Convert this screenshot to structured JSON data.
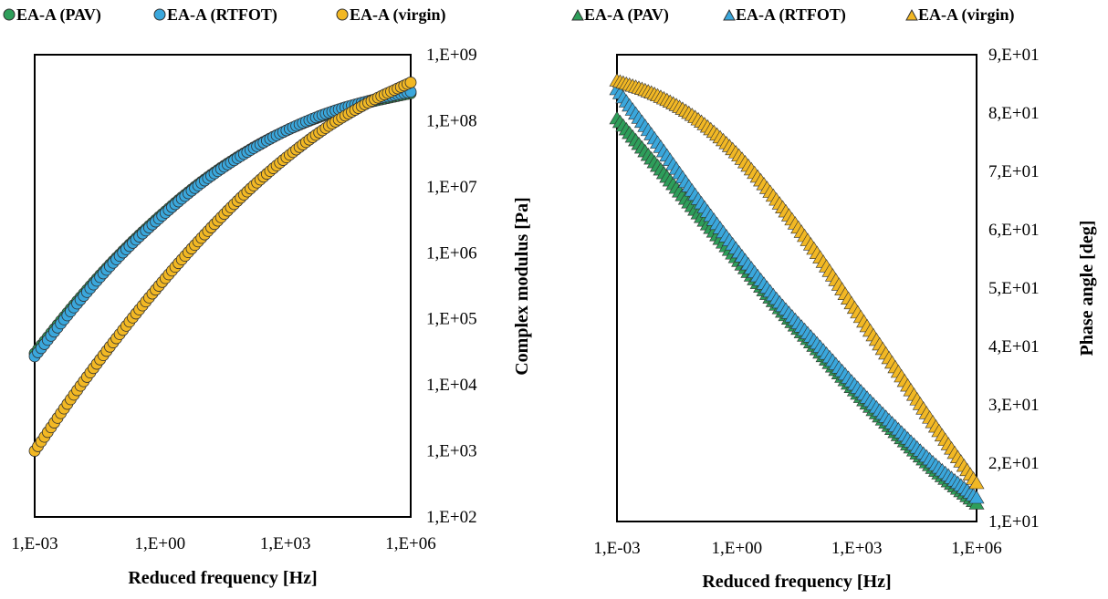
{
  "colors": {
    "pav": "#2e9e5a",
    "rtfot": "#3aa7dc",
    "virgin": "#f2b824",
    "marker_edge": "#303030"
  },
  "chart_data": [
    {
      "type": "scatter",
      "marker": "circle",
      "title": "",
      "xlabel": "Reduced frequency [Hz]",
      "ylabel": "Complex modulus [Pa]",
      "xscale": "log",
      "yscale": "log",
      "xlim": [
        0.001,
        1000000
      ],
      "ylim": [
        100,
        1000000000
      ],
      "y_axis_side": "right",
      "grid": false,
      "legend_position": "top",
      "x_tick_labels": [
        "1,E-03",
        "1,E+00",
        "1,E+03",
        "1,E+06"
      ],
      "y_tick_labels": [
        "1,E+02",
        "1,E+03",
        "1,E+04",
        "1,E+05",
        "1,E+06",
        "1,E+07",
        "1,E+08",
        "1,E+09"
      ],
      "series": [
        {
          "name": "EA-A (PAV)",
          "color": "#2e9e5a",
          "x": [
            0.001,
            0.01,
            0.1,
            1,
            10,
            100,
            1000,
            10000,
            100000,
            1000000
          ],
          "y": [
            30000,
            180000,
            900000,
            3600000,
            12000000,
            32000000,
            70000000,
            125000000,
            190000000,
            260000000
          ]
        },
        {
          "name": "EA-A (RTFOT)",
          "color": "#3aa7dc",
          "x": [
            0.001,
            0.01,
            0.1,
            1,
            10,
            100,
            1000,
            10000,
            100000,
            1000000
          ],
          "y": [
            27000,
            165000,
            850000,
            3400000,
            11500000,
            31000000,
            70000000,
            130000000,
            200000000,
            275000000
          ]
        },
        {
          "name": "EA-A (virgin)",
          "color": "#f2b824",
          "x": [
            0.001,
            0.01,
            0.1,
            1,
            10,
            100,
            1000,
            10000,
            100000,
            1000000
          ],
          "y": [
            1000,
            8000,
            55000,
            330000,
            1700000,
            7500000,
            27000000,
            80000000,
            190000000,
            380000000
          ]
        }
      ]
    },
    {
      "type": "scatter",
      "marker": "triangle",
      "title": "",
      "xlabel": "Reduced frequency [Hz]",
      "ylabel": "Phase angle [deg]",
      "xscale": "log",
      "yscale": "linear",
      "xlim": [
        0.001,
        1000000
      ],
      "ylim": [
        10,
        90
      ],
      "y_axis_side": "right",
      "grid": false,
      "legend_position": "top",
      "x_tick_labels": [
        "1,E-03",
        "1,E+00",
        "1,E+03",
        "1,E+06"
      ],
      "y_tick_labels": [
        "1,E+01",
        "2,E+01",
        "3,E+01",
        "4,E+01",
        "5,E+01",
        "6,E+01",
        "7,E+01",
        "8,E+01",
        "9,E+01"
      ],
      "series": [
        {
          "name": "EA-A (PAV)",
          "color": "#2e9e5a",
          "x": [
            0.001,
            0.01,
            0.1,
            1,
            10,
            100,
            1000,
            10000,
            100000,
            1000000
          ],
          "y": [
            79,
            71,
            63,
            55,
            47,
            39.5,
            32,
            25,
            18.5,
            13
          ]
        },
        {
          "name": "EA-A (RTFOT)",
          "color": "#3aa7dc",
          "x": [
            0.001,
            0.01,
            0.1,
            1,
            10,
            100,
            1000,
            10000,
            100000,
            1000000
          ],
          "y": [
            84,
            75,
            65.5,
            56.5,
            48,
            40.5,
            33,
            26,
            19.5,
            14
          ]
        },
        {
          "name": "EA-A (virgin)",
          "color": "#f2b824",
          "x": [
            0.001,
            0.01,
            0.1,
            1,
            10,
            100,
            1000,
            10000,
            100000,
            1000000
          ],
          "y": [
            85.5,
            83,
            79,
            73,
            65,
            56,
            46,
            36,
            26,
            16.5
          ]
        }
      ]
    }
  ]
}
